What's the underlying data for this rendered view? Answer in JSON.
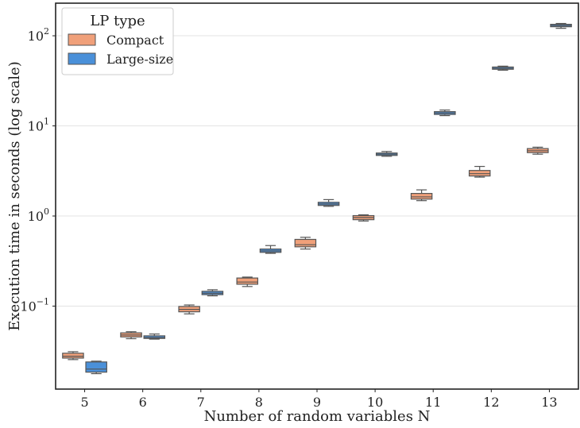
{
  "chart_data": {
    "type": "box",
    "xlabel": "Number of random variables N",
    "ylabel": "Execution time in seconds (log scale)",
    "yscale": "log",
    "ylim": [
      0.012,
      230
    ],
    "grid": "horizontal",
    "categories": [
      "5",
      "6",
      "7",
      "8",
      "9",
      "10",
      "11",
      "12",
      "13"
    ],
    "y_ticks": [
      {
        "value": 0.1,
        "base": "10",
        "exp": "−1"
      },
      {
        "value": 1,
        "base": "10",
        "exp": "0"
      },
      {
        "value": 10,
        "base": "10",
        "exp": "1"
      },
      {
        "value": 100,
        "base": "10",
        "exp": "2"
      }
    ],
    "legend": {
      "title": "LP type",
      "placement": "top-left",
      "entries": [
        "Compact",
        "Large-size"
      ]
    },
    "series": [
      {
        "name": "Compact",
        "color": "#f0a07a",
        "boxes": [
          {
            "min": 0.0255,
            "q1": 0.0265,
            "median": 0.0278,
            "q3": 0.03,
            "max": 0.0312
          },
          {
            "min": 0.0435,
            "q1": 0.0455,
            "median": 0.0478,
            "q3": 0.0505,
            "max": 0.052
          },
          {
            "min": 0.082,
            "q1": 0.0865,
            "median": 0.092,
            "q3": 0.099,
            "max": 0.103
          },
          {
            "min": 0.165,
            "q1": 0.175,
            "median": 0.185,
            "q3": 0.205,
            "max": 0.21
          },
          {
            "min": 0.43,
            "q1": 0.455,
            "median": 0.48,
            "q3": 0.55,
            "max": 0.58
          },
          {
            "min": 0.88,
            "q1": 0.91,
            "median": 0.96,
            "q3": 1.01,
            "max": 1.03
          },
          {
            "min": 1.48,
            "q1": 1.54,
            "median": 1.63,
            "q3": 1.78,
            "max": 1.95
          },
          {
            "min": 2.7,
            "q1": 2.78,
            "median": 2.95,
            "q3": 3.2,
            "max": 3.55
          },
          {
            "min": 4.85,
            "q1": 5.05,
            "median": 5.3,
            "q3": 5.6,
            "max": 5.8
          }
        ]
      },
      {
        "name": "Large-size",
        "color": "#4a90d9",
        "boxes": [
          {
            "min": 0.0178,
            "q1": 0.0185,
            "median": 0.02,
            "q3": 0.024,
            "max": 0.0245
          },
          {
            "min": 0.043,
            "q1": 0.0438,
            "median": 0.0448,
            "q3": 0.0468,
            "max": 0.049
          },
          {
            "min": 0.13,
            "q1": 0.134,
            "median": 0.139,
            "q3": 0.146,
            "max": 0.152
          },
          {
            "min": 0.385,
            "q1": 0.395,
            "median": 0.41,
            "q3": 0.43,
            "max": 0.47
          },
          {
            "min": 1.28,
            "q1": 1.31,
            "median": 1.36,
            "q3": 1.42,
            "max": 1.52
          },
          {
            "min": 4.6,
            "q1": 4.7,
            "median": 4.85,
            "q3": 5.0,
            "max": 5.2
          },
          {
            "min": 13.0,
            "q1": 13.4,
            "median": 13.9,
            "q3": 14.4,
            "max": 15.0
          },
          {
            "min": 41.5,
            "q1": 42.5,
            "median": 43.5,
            "q3": 45.0,
            "max": 46.0
          },
          {
            "min": 121,
            "q1": 126,
            "median": 130,
            "q3": 134,
            "max": 137
          }
        ]
      }
    ]
  }
}
